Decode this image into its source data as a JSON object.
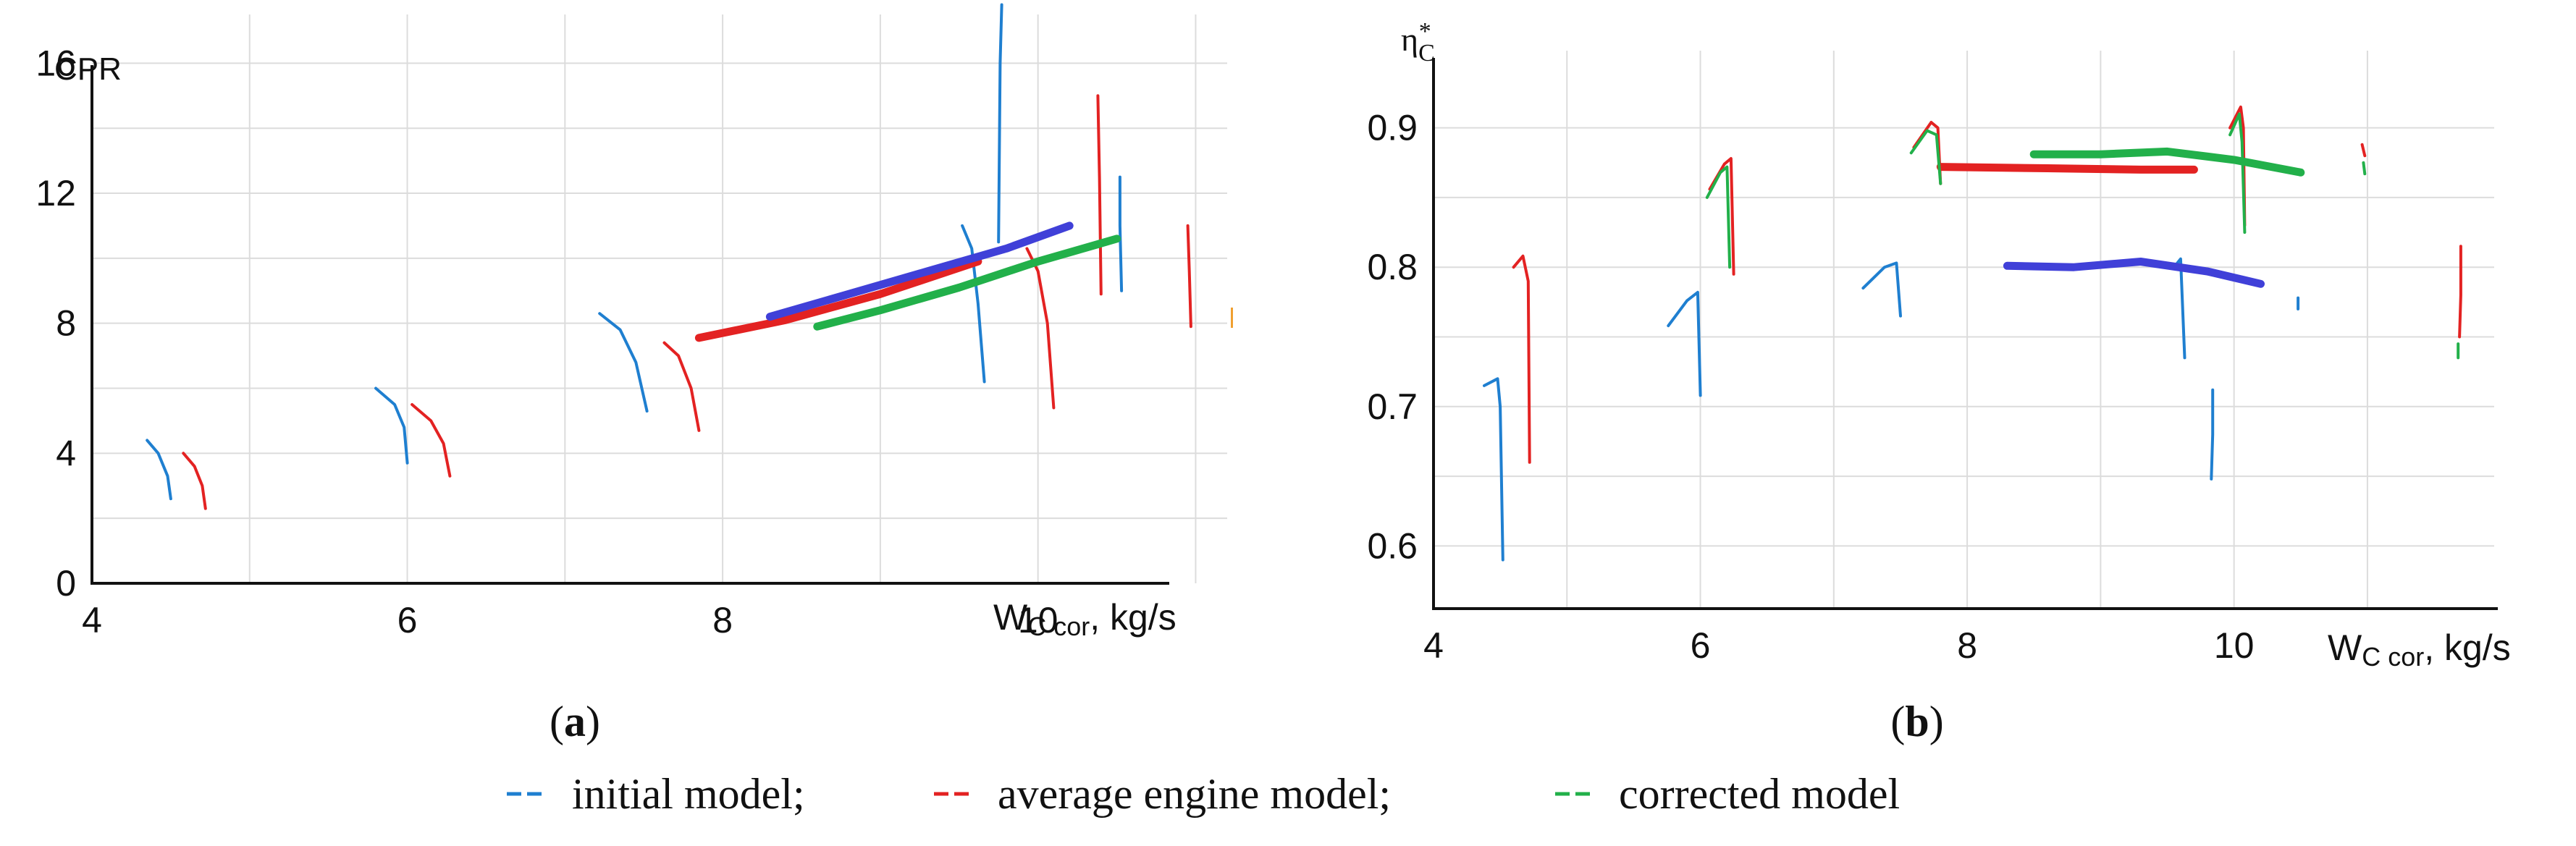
{
  "colors": {
    "initial": "#1f7fd0",
    "average": "#e32222",
    "corrected": "#22b04a",
    "extra": "#4040d8",
    "grid": "#dcdcdc"
  },
  "chart_data": [
    {
      "type": "line",
      "panel_label": "a",
      "ylabel": "CPR",
      "xlabel_main": "W",
      "xlabel_sub": "C cor",
      "xlabel_unit": ", kg/s",
      "xlim": [
        4,
        11.2
      ],
      "ylim": [
        0,
        17.5
      ],
      "x_ticks": [
        4,
        6,
        8,
        10
      ],
      "y_ticks": [
        0,
        4,
        8,
        12,
        16
      ],
      "grid": true,
      "series": [
        {
          "color_key": "initial",
          "segments": [
            [
              [
                4.35,
                4.4
              ],
              [
                4.42,
                4.0
              ],
              [
                4.48,
                3.3
              ],
              [
                4.5,
                2.6
              ]
            ],
            [
              [
                5.8,
                6.0
              ],
              [
                5.92,
                5.5
              ],
              [
                5.98,
                4.8
              ],
              [
                6.0,
                3.7
              ]
            ],
            [
              [
                7.22,
                8.3
              ],
              [
                7.35,
                7.8
              ],
              [
                7.45,
                6.8
              ],
              [
                7.52,
                5.3
              ]
            ],
            [
              [
                9.52,
                11.0
              ],
              [
                9.58,
                10.3
              ],
              [
                9.62,
                8.6
              ],
              [
                9.66,
                6.2
              ]
            ],
            [
              [
                10.52,
                12.5
              ],
              [
                10.52,
                11.0
              ],
              [
                10.53,
                9.0
              ]
            ],
            [
              [
                9.77,
                17.8
              ],
              [
                9.76,
                16.0
              ],
              [
                9.75,
                10.5
              ]
            ]
          ]
        },
        {
          "color_key": "average",
          "segments": [
            [
              [
                4.58,
                4.0
              ],
              [
                4.65,
                3.6
              ],
              [
                4.7,
                3.0
              ],
              [
                4.72,
                2.3
              ]
            ],
            [
              [
                6.03,
                5.5
              ],
              [
                6.15,
                5.0
              ],
              [
                6.23,
                4.3
              ],
              [
                6.27,
                3.3
              ]
            ],
            [
              [
                7.63,
                7.4
              ],
              [
                7.72,
                7.0
              ],
              [
                7.8,
                6.0
              ],
              [
                7.85,
                4.7
              ]
            ],
            [
              [
                9.93,
                10.3
              ],
              [
                10.0,
                9.6
              ],
              [
                10.06,
                8.0
              ],
              [
                10.1,
                5.4
              ]
            ],
            [
              [
                10.95,
                11.0
              ],
              [
                10.96,
                9.6
              ],
              [
                10.97,
                7.9
              ]
            ],
            [
              [
                10.38,
                15.0
              ],
              [
                10.39,
                12.5
              ],
              [
                10.4,
                8.9
              ]
            ],
            [
              [
                7.85,
                7.55
              ],
              [
                8.4,
                8.1
              ],
              [
                9.0,
                8.9
              ],
              [
                9.62,
                9.9
              ]
            ]
          ]
        },
        {
          "color_key": "corrected",
          "segments": [
            [
              [
                8.6,
                7.9
              ],
              [
                9.0,
                8.4
              ],
              [
                9.5,
                9.1
              ],
              [
                10.0,
                9.9
              ],
              [
                10.5,
                10.6
              ]
            ]
          ]
        },
        {
          "color_key": "extra",
          "segments": [
            [
              [
                8.3,
                8.2
              ],
              [
                8.8,
                8.9
              ],
              [
                9.3,
                9.6
              ],
              [
                9.8,
                10.3
              ],
              [
                10.2,
                11.0
              ]
            ]
          ]
        }
      ]
    },
    {
      "type": "line",
      "panel_label": "b",
      "ylabel_main": "η",
      "ylabel_sub": "C",
      "ylabel_sup": "*",
      "xlabel_main": "W",
      "xlabel_sub": "C cor",
      "xlabel_unit": ", kg/s",
      "xlim": [
        4,
        11.95
      ],
      "ylim": [
        0.555,
        0.945
      ],
      "x_ticks": [
        4,
        6,
        8,
        10
      ],
      "y_ticks": [
        0.6,
        0.7,
        0.8,
        0.9
      ],
      "grid": true,
      "series": [
        {
          "color_key": "initial",
          "segments": [
            [
              [
                4.38,
                0.715
              ],
              [
                4.48,
                0.72
              ],
              [
                4.5,
                0.7
              ],
              [
                4.52,
                0.59
              ]
            ],
            [
              [
                5.76,
                0.758
              ],
              [
                5.9,
                0.776
              ],
              [
                5.98,
                0.782
              ],
              [
                6.0,
                0.708
              ]
            ],
            [
              [
                7.22,
                0.785
              ],
              [
                7.38,
                0.8
              ],
              [
                7.47,
                0.803
              ],
              [
                7.5,
                0.765
              ]
            ],
            [
              [
                9.55,
                0.8
              ],
              [
                9.6,
                0.806
              ],
              [
                9.63,
                0.735
              ]
            ],
            [
              [
                9.84,
                0.712
              ],
              [
                9.84,
                0.68
              ],
              [
                9.83,
                0.648
              ]
            ],
            [
              [
                10.48,
                0.778
              ],
              [
                10.48,
                0.77
              ]
            ]
          ]
        },
        {
          "color_key": "average",
          "segments": [
            [
              [
                4.6,
                0.8
              ],
              [
                4.67,
                0.808
              ],
              [
                4.71,
                0.79
              ],
              [
                4.72,
                0.66
              ]
            ],
            [
              [
                6.07,
                0.856
              ],
              [
                6.18,
                0.874
              ],
              [
                6.23,
                0.878
              ],
              [
                6.25,
                0.795
              ]
            ],
            [
              [
                7.6,
                0.886
              ],
              [
                7.73,
                0.904
              ],
              [
                7.78,
                0.9
              ],
              [
                7.8,
                0.86
              ]
            ],
            [
              [
                9.97,
                0.9
              ],
              [
                10.05,
                0.915
              ],
              [
                10.07,
                0.9
              ],
              [
                10.08,
                0.83
              ]
            ],
            [
              [
                10.96,
                0.888
              ],
              [
                10.98,
                0.88
              ]
            ],
            [
              [
                11.7,
                0.815
              ],
              [
                11.7,
                0.78
              ],
              [
                11.69,
                0.75
              ]
            ],
            [
              [
                7.8,
                0.872
              ],
              [
                8.6,
                0.871
              ],
              [
                9.3,
                0.87
              ],
              [
                9.7,
                0.87
              ]
            ]
          ]
        },
        {
          "color_key": "corrected",
          "segments": [
            [
              [
                7.58,
                0.882
              ],
              [
                7.7,
                0.898
              ],
              [
                7.77,
                0.895
              ],
              [
                7.8,
                0.86
              ]
            ],
            [
              [
                6.05,
                0.85
              ],
              [
                6.15,
                0.868
              ],
              [
                6.2,
                0.872
              ],
              [
                6.22,
                0.8
              ]
            ],
            [
              [
                9.97,
                0.895
              ],
              [
                10.04,
                0.91
              ],
              [
                10.06,
                0.89
              ],
              [
                10.08,
                0.825
              ]
            ],
            [
              [
                10.97,
                0.875
              ],
              [
                10.98,
                0.867
              ]
            ],
            [
              [
                11.68,
                0.745
              ],
              [
                11.68,
                0.735
              ]
            ],
            [
              [
                8.5,
                0.881
              ],
              [
                9.0,
                0.881
              ],
              [
                9.5,
                0.883
              ],
              [
                10.0,
                0.877
              ],
              [
                10.5,
                0.868
              ]
            ]
          ]
        },
        {
          "color_key": "extra",
          "segments": [
            [
              [
                8.3,
                0.801
              ],
              [
                8.8,
                0.8
              ],
              [
                9.3,
                0.804
              ],
              [
                9.8,
                0.797
              ],
              [
                10.2,
                0.788
              ]
            ]
          ]
        }
      ]
    }
  ],
  "stray_mark": {
    "color": "#f0a030"
  },
  "captions": {
    "a": "a",
    "b": "b"
  },
  "legend": [
    {
      "color_key": "initial",
      "label": "initial model;"
    },
    {
      "color_key": "average",
      "label": "average engine model;"
    },
    {
      "color_key": "corrected",
      "label": "corrected model"
    }
  ]
}
